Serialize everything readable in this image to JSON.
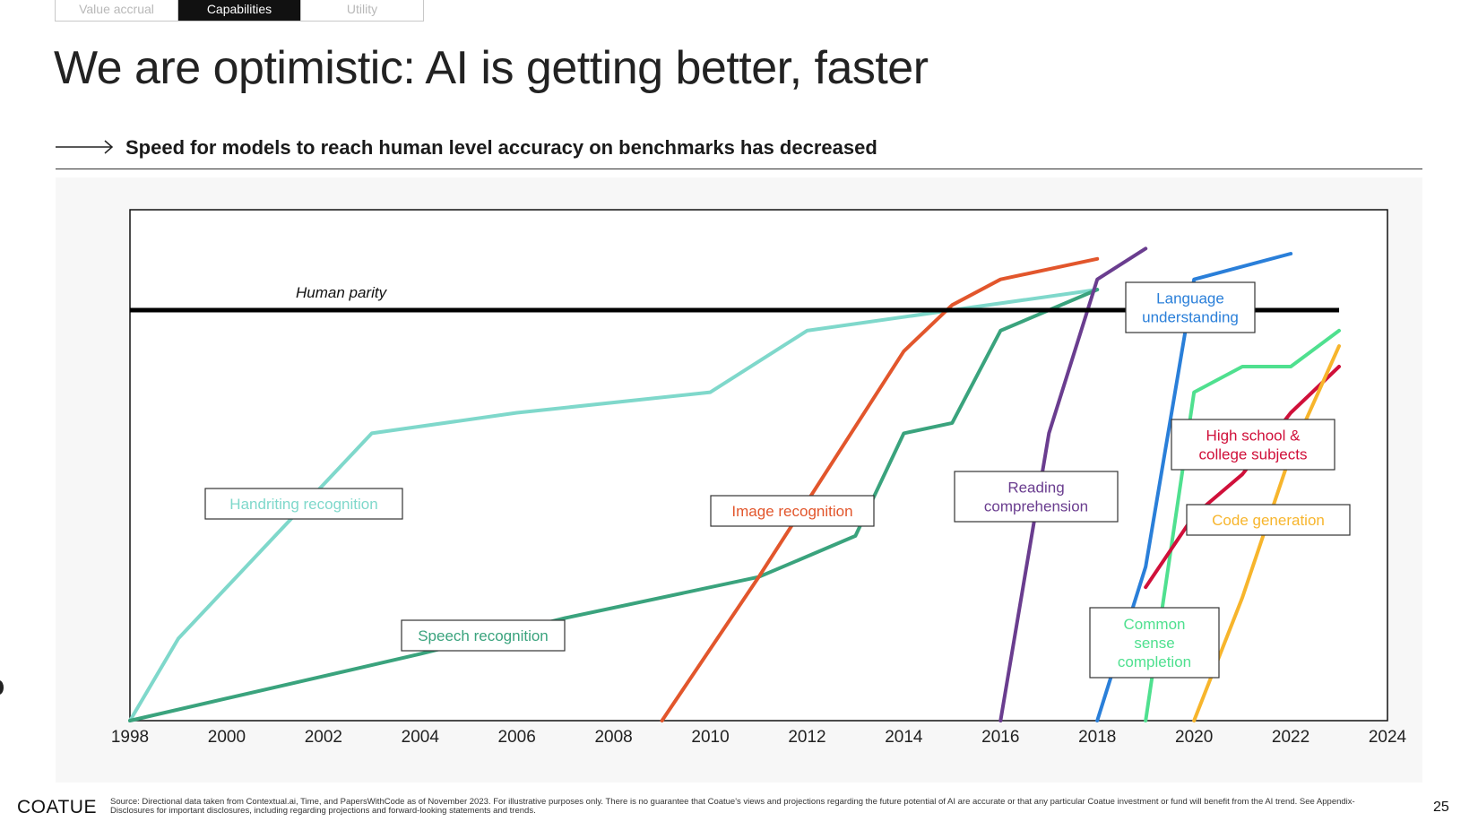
{
  "tabs": [
    {
      "label": "Value accrual",
      "active": false
    },
    {
      "label": "Capabilities",
      "active": true
    },
    {
      "label": "Utility",
      "active": false
    }
  ],
  "title": "We are optimistic: AI is getting better, faster",
  "subtitle": "Speed for models to reach human level accuracy on benchmarks has decreased",
  "chart_data": {
    "type": "line",
    "xlim": [
      1998,
      2024
    ],
    "ylim": [
      0,
      100
    ],
    "x_ticks": [
      "1998",
      "2000",
      "2002",
      "2004",
      "2006",
      "2008",
      "2010",
      "2012",
      "2014",
      "2016",
      "2018",
      "2020",
      "2022",
      "2024"
    ],
    "grid": false,
    "reference_line": {
      "label": "Human parity",
      "value": 80
    },
    "series": [
      {
        "name": "Handriting recognition",
        "color": "#7fd8cb",
        "points": [
          [
            1998,
            0
          ],
          [
            1999,
            16
          ],
          [
            2003,
            56
          ],
          [
            2006,
            60
          ],
          [
            2010,
            64
          ],
          [
            2012,
            76
          ],
          [
            2015,
            80
          ],
          [
            2018,
            84
          ]
        ]
      },
      {
        "name": "Speech recognition",
        "color": "#3aa37d",
        "points": [
          [
            1998,
            0
          ],
          [
            2004,
            13
          ],
          [
            2007,
            20
          ],
          [
            2011,
            28
          ],
          [
            2013,
            36
          ],
          [
            2014,
            56
          ],
          [
            2015,
            58
          ],
          [
            2016,
            76
          ],
          [
            2018,
            84
          ]
        ]
      },
      {
        "name": "Image recognition",
        "color": "#e2562c",
        "points": [
          [
            2009,
            0
          ],
          [
            2011,
            28
          ],
          [
            2014,
            72
          ],
          [
            2015,
            81
          ],
          [
            2016,
            86
          ],
          [
            2018,
            90
          ]
        ]
      },
      {
        "name": "Reading comprehension",
        "color": "#6a3d8f",
        "points": [
          [
            2016,
            0
          ],
          [
            2017,
            56
          ],
          [
            2018,
            86
          ],
          [
            2019,
            92
          ]
        ]
      },
      {
        "name": "Language understanding",
        "color": "#2a7fd9",
        "points": [
          [
            2018,
            0
          ],
          [
            2019,
            30
          ],
          [
            2020,
            86
          ],
          [
            2022,
            91
          ]
        ]
      },
      {
        "name": "Common sense completion",
        "color": "#4fe08f",
        "points": [
          [
            2019,
            0
          ],
          [
            2020,
            64
          ],
          [
            2021,
            69
          ],
          [
            2022,
            69
          ],
          [
            2023,
            76
          ]
        ]
      },
      {
        "name": "High school & college subjects",
        "color": "#d0103a",
        "points": [
          [
            2019,
            26
          ],
          [
            2020,
            40
          ],
          [
            2021,
            48
          ],
          [
            2022,
            60
          ],
          [
            2023,
            69
          ]
        ]
      },
      {
        "name": "Code generation",
        "color": "#f7b52c",
        "points": [
          [
            2020,
            0
          ],
          [
            2021,
            24
          ],
          [
            2022,
            52
          ],
          [
            2023,
            73
          ]
        ]
      }
    ],
    "labels": [
      {
        "series": "Handriting recognition",
        "lines": [
          "Handriting recognition"
        ]
      },
      {
        "series": "Speech recognition",
        "lines": [
          "Speech recognition"
        ]
      },
      {
        "series": "Image recognition",
        "lines": [
          "Image recognition"
        ]
      },
      {
        "series": "Reading comprehension",
        "lines": [
          "Reading",
          "comprehension"
        ]
      },
      {
        "series": "Language understanding",
        "lines": [
          "Language",
          "understanding"
        ]
      },
      {
        "series": "High school & college subjects",
        "lines": [
          "High school &",
          "college subjects"
        ]
      },
      {
        "series": "Code generation",
        "lines": [
          "Code generation"
        ]
      },
      {
        "series": "Common sense completion",
        "lines": [
          "Common",
          "sense",
          "completion"
        ]
      }
    ]
  },
  "footer": {
    "logo": "COATUE",
    "source_note": "Source: Directional data taken from Contextual.ai, Time, and PapersWithCode as of November 2023. For illustrative purposes only. There is no guarantee that Coatue's views and projections regarding the future potential of AI are accurate or that any particular Coatue investment or fund will benefit from the AI trend. See Appendix-Disclosures for important disclosures, including regarding projections and forward-looking statements and trends.",
    "page_number": "25"
  }
}
